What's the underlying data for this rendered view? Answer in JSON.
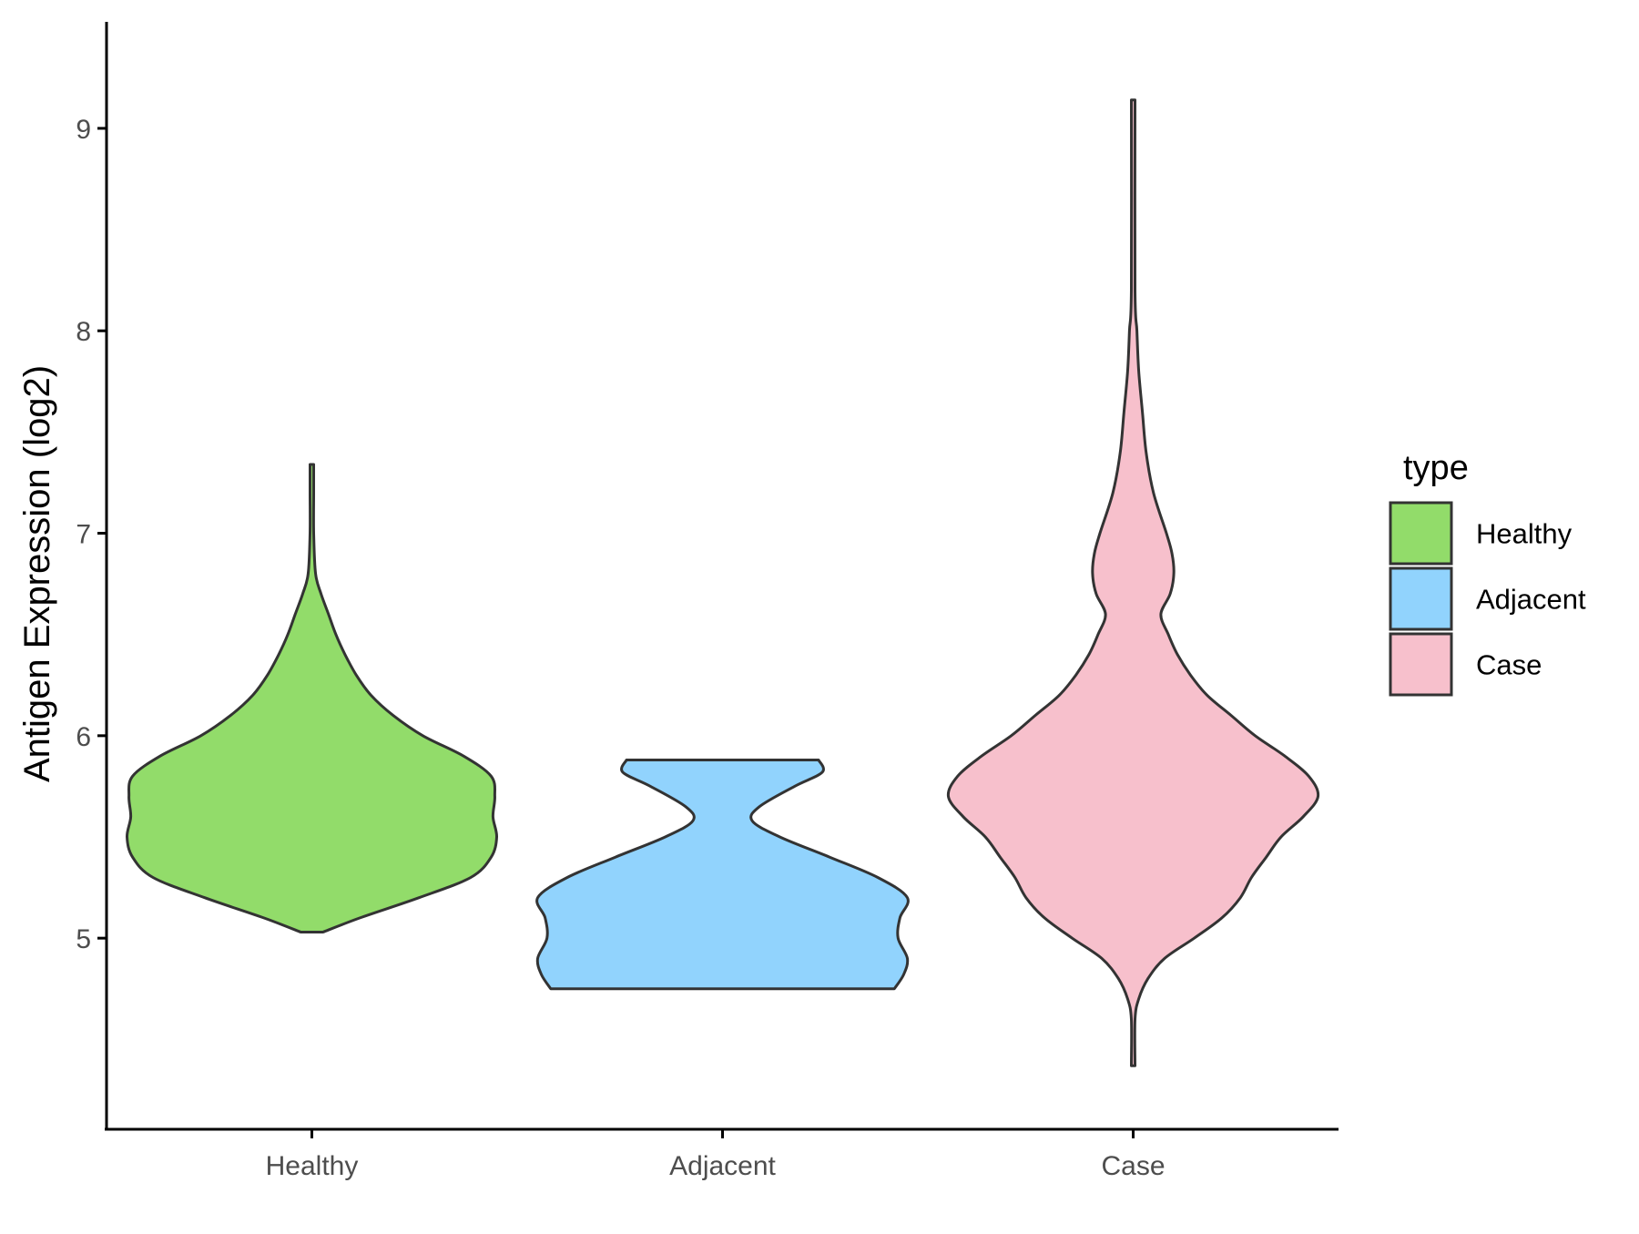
{
  "chart_data": {
    "type": "violin",
    "title": "",
    "xlabel": "",
    "ylabel": "Antigen Expression (log2)",
    "ylim": [
      4.2,
      9.4
    ],
    "yticks": [
      5,
      6,
      7,
      8,
      9
    ],
    "categories": [
      "Healthy",
      "Adjacent",
      "Case"
    ],
    "grid": false,
    "legend": {
      "title": "type",
      "position": "right",
      "entries": [
        "Healthy",
        "Adjacent",
        "Case"
      ]
    },
    "colors": {
      "Healthy": "#92dc6a",
      "Adjacent": "#91d3fd",
      "Case": "#f7c0cc",
      "outline": "#333333",
      "axis": "#000000"
    },
    "series": [
      {
        "name": "Healthy",
        "min": 5.03,
        "max": 7.34,
        "profile": [
          [
            5.03,
            0.06
          ],
          [
            5.1,
            0.26
          ],
          [
            5.2,
            0.58
          ],
          [
            5.3,
            0.86
          ],
          [
            5.4,
            0.97
          ],
          [
            5.5,
            1.0
          ],
          [
            5.6,
            0.98
          ],
          [
            5.7,
            0.99
          ],
          [
            5.8,
            0.97
          ],
          [
            5.9,
            0.82
          ],
          [
            6.0,
            0.6
          ],
          [
            6.1,
            0.44
          ],
          [
            6.2,
            0.32
          ],
          [
            6.3,
            0.24
          ],
          [
            6.4,
            0.18
          ],
          [
            6.5,
            0.13
          ],
          [
            6.6,
            0.09
          ],
          [
            6.7,
            0.05
          ],
          [
            6.8,
            0.02
          ],
          [
            7.0,
            0.01
          ],
          [
            7.2,
            0.01
          ],
          [
            7.34,
            0.01
          ]
        ]
      },
      {
        "name": "Adjacent",
        "min": 4.75,
        "max": 5.88,
        "profile": [
          [
            4.75,
            0.93
          ],
          [
            4.82,
            0.98
          ],
          [
            4.9,
            1.0
          ],
          [
            5.0,
            0.95
          ],
          [
            5.1,
            0.96
          ],
          [
            5.2,
            1.0
          ],
          [
            5.3,
            0.84
          ],
          [
            5.4,
            0.58
          ],
          [
            5.5,
            0.31
          ],
          [
            5.58,
            0.16
          ],
          [
            5.65,
            0.2
          ],
          [
            5.75,
            0.39
          ],
          [
            5.82,
            0.54
          ],
          [
            5.88,
            0.52
          ]
        ]
      },
      {
        "name": "Case",
        "min": 4.37,
        "max": 9.14,
        "profile": [
          [
            4.37,
            0.01
          ],
          [
            4.6,
            0.01
          ],
          [
            4.7,
            0.03
          ],
          [
            4.8,
            0.08
          ],
          [
            4.9,
            0.17
          ],
          [
            5.0,
            0.33
          ],
          [
            5.1,
            0.48
          ],
          [
            5.2,
            0.58
          ],
          [
            5.3,
            0.64
          ],
          [
            5.4,
            0.72
          ],
          [
            5.5,
            0.8
          ],
          [
            5.6,
            0.92
          ],
          [
            5.7,
            1.0
          ],
          [
            5.8,
            0.95
          ],
          [
            5.9,
            0.82
          ],
          [
            6.0,
            0.66
          ],
          [
            6.1,
            0.53
          ],
          [
            6.2,
            0.4
          ],
          [
            6.3,
            0.31
          ],
          [
            6.4,
            0.24
          ],
          [
            6.5,
            0.19
          ],
          [
            6.6,
            0.15
          ],
          [
            6.7,
            0.2
          ],
          [
            6.8,
            0.22
          ],
          [
            6.9,
            0.21
          ],
          [
            7.0,
            0.18
          ],
          [
            7.2,
            0.11
          ],
          [
            7.4,
            0.07
          ],
          [
            7.6,
            0.05
          ],
          [
            7.8,
            0.03
          ],
          [
            8.0,
            0.02
          ],
          [
            8.2,
            0.01
          ],
          [
            9.14,
            0.01
          ]
        ]
      }
    ]
  }
}
